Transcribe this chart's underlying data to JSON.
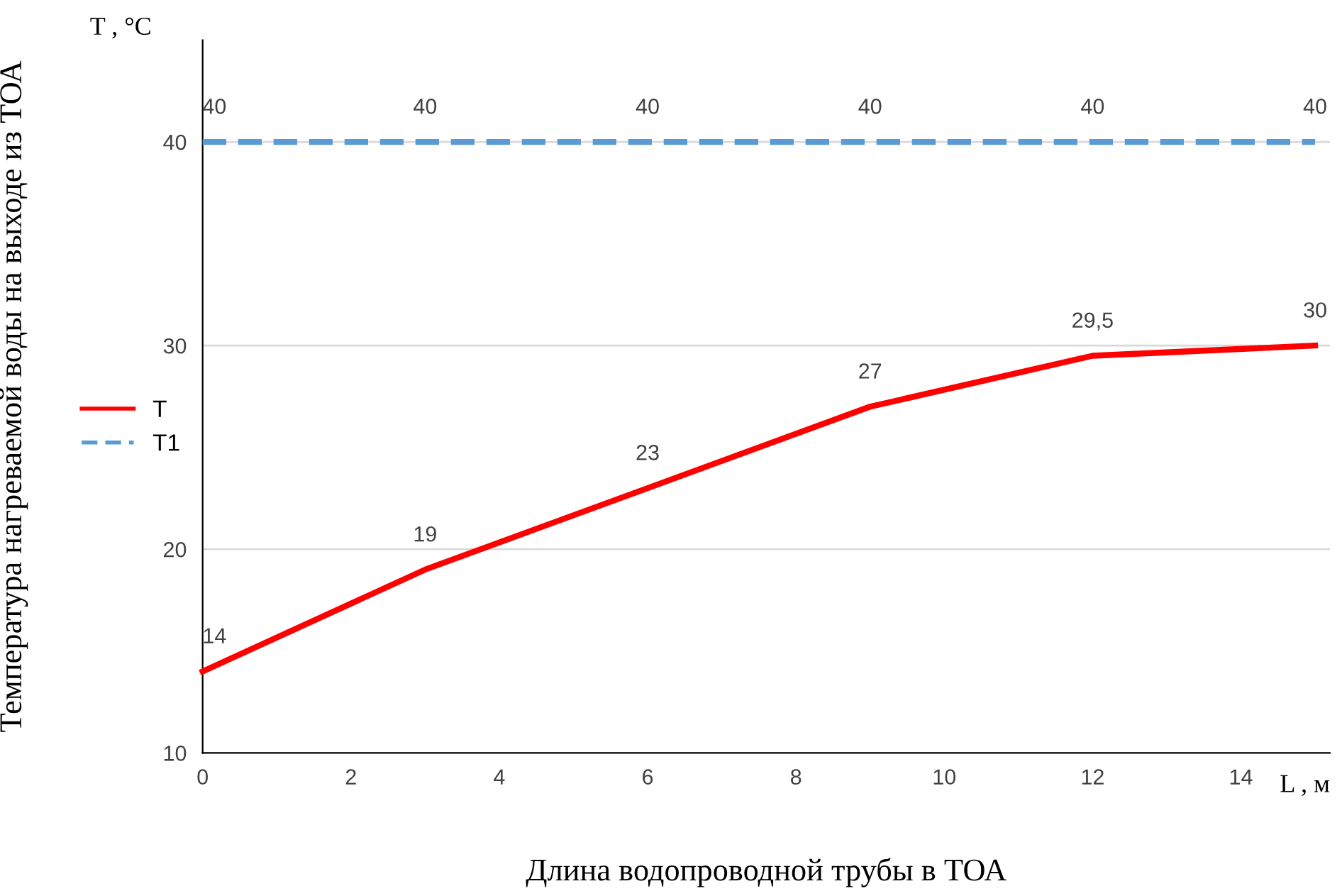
{
  "chart_data": {
    "type": "line",
    "xlabel": "Длина водопроводной трубы в ТОА",
    "ylabel": "Температура нагреваемой воды на выходе из ТОА",
    "annotations": [
      "T , °C",
      "L , м"
    ],
    "xlim": [
      0,
      15.2
    ],
    "ylim": [
      10,
      45
    ],
    "xticks": [
      0,
      2,
      4,
      6,
      8,
      10,
      12,
      14
    ],
    "yticks": [
      10,
      20,
      30,
      40
    ],
    "grid": "y",
    "legend": "left",
    "series": [
      {
        "name": "T",
        "color": "#ff0000",
        "line_style": "solid",
        "x": [
          0,
          3,
          6,
          9,
          12,
          15
        ],
        "values": [
          14,
          19,
          23,
          27,
          29.5,
          30
        ],
        "value_labels": [
          "14",
          "19",
          "23",
          "27",
          "29,5",
          "30"
        ]
      },
      {
        "name": "T1",
        "color": "#5b9bd5",
        "line_style": "dashed",
        "x": [
          0,
          3,
          6,
          9,
          12,
          15
        ],
        "values": [
          40,
          40,
          40,
          40,
          40,
          40
        ],
        "value_labels": [
          "40",
          "40",
          "40",
          "40",
          "40",
          "40"
        ]
      }
    ]
  }
}
